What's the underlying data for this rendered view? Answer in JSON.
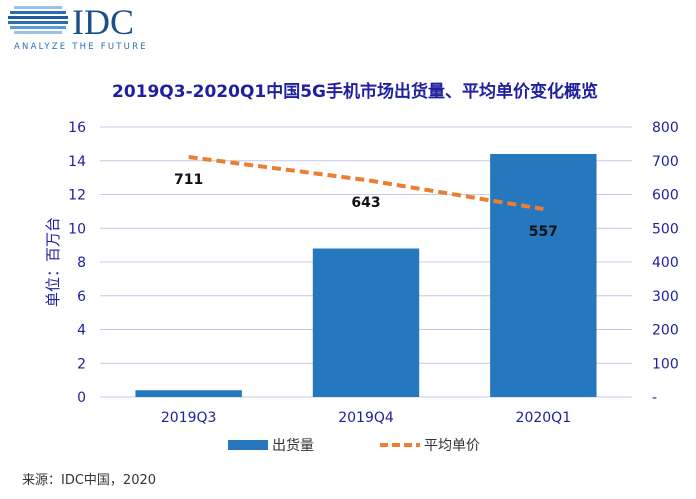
{
  "logo": {
    "name": "IDC",
    "tagline": "ANALYZE THE FUTURE"
  },
  "source": "来源：IDC中国，2020",
  "colors": {
    "bar": "#2577BE",
    "line": "#ED7D31",
    "axis_text": "#1F1FA0",
    "title": "#1F1FA0",
    "grid": "#C8C8EC"
  },
  "chart_data": {
    "type": "bar+line",
    "title": "2019Q3-2020Q1中国5G手机市场出货量、平均单价变化概览",
    "ylabel": "单位：百万台",
    "categories": [
      "2019Q3",
      "2019Q4",
      "2020Q1"
    ],
    "series": [
      {
        "name": "出货量",
        "type": "bar",
        "axis": "left",
        "values": [
          0.4,
          8.8,
          14.4
        ]
      },
      {
        "name": "平均单价",
        "type": "line",
        "style": "dashed",
        "axis": "right",
        "values": [
          711,
          643,
          557
        ],
        "labels": [
          "711",
          "643",
          "557"
        ]
      }
    ],
    "ylim": [
      0,
      16
    ],
    "yticks": [
      "0",
      "2",
      "4",
      "6",
      "8",
      "10",
      "12",
      "14",
      "16"
    ],
    "y2lim": [
      0,
      800
    ],
    "y2ticks": [
      "-",
      "100",
      "200",
      "300",
      "400",
      "500",
      "600",
      "700",
      "800"
    ],
    "grid": true,
    "legend": "bottom"
  }
}
